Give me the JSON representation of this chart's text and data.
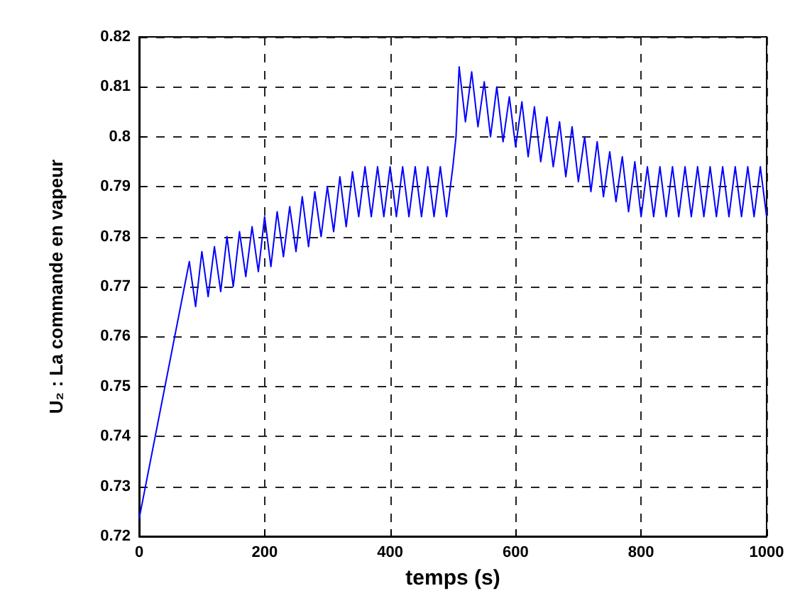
{
  "chart_data": {
    "type": "line",
    "xlabel": "temps (s)",
    "ylabel": "U₂ : La commande en vapeur",
    "xlim": [
      0,
      1000
    ],
    "xticks": [
      0,
      200,
      400,
      600,
      800,
      1000
    ],
    "ylim": [
      0.72,
      0.82
    ],
    "yticks": [
      0.72,
      0.73,
      0.74,
      0.75,
      0.76,
      0.77,
      0.78,
      0.79,
      0.8,
      0.81,
      0.82
    ],
    "grid": true,
    "marker": "none",
    "line_style": "solid",
    "series": [
      {
        "color": "#0000ff",
        "x": [
          0,
          80,
          90,
          100,
          110,
          120,
          130,
          140,
          150,
          160,
          170,
          180,
          190,
          200,
          210,
          220,
          230,
          240,
          250,
          260,
          270,
          280,
          290,
          300,
          310,
          320,
          330,
          340,
          350,
          360,
          370,
          380,
          390,
          400,
          410,
          420,
          430,
          440,
          450,
          460,
          470,
          480,
          490,
          500,
          505,
          510,
          520,
          530,
          540,
          550,
          560,
          570,
          580,
          590,
          600,
          610,
          620,
          630,
          640,
          650,
          660,
          670,
          680,
          690,
          700,
          710,
          720,
          730,
          740,
          750,
          760,
          770,
          780,
          790,
          800,
          810,
          820,
          830,
          840,
          850,
          860,
          870,
          880,
          890,
          900,
          910,
          920,
          930,
          940,
          950,
          960,
          970,
          980,
          990,
          1000
        ],
        "values": [
          0.7235,
          0.775,
          0.766,
          0.777,
          0.768,
          0.778,
          0.769,
          0.78,
          0.77,
          0.781,
          0.772,
          0.782,
          0.773,
          0.784,
          0.774,
          0.785,
          0.776,
          0.786,
          0.777,
          0.788,
          0.778,
          0.789,
          0.78,
          0.79,
          0.781,
          0.792,
          0.782,
          0.793,
          0.784,
          0.794,
          0.784,
          0.794,
          0.784,
          0.794,
          0.784,
          0.794,
          0.784,
          0.794,
          0.784,
          0.794,
          0.784,
          0.794,
          0.784,
          0.794,
          0.8,
          0.814,
          0.803,
          0.813,
          0.802,
          0.811,
          0.8,
          0.81,
          0.799,
          0.808,
          0.798,
          0.807,
          0.796,
          0.806,
          0.795,
          0.804,
          0.794,
          0.803,
          0.792,
          0.802,
          0.791,
          0.8,
          0.789,
          0.799,
          0.788,
          0.797,
          0.787,
          0.796,
          0.785,
          0.795,
          0.784,
          0.794,
          0.784,
          0.794,
          0.784,
          0.794,
          0.784,
          0.794,
          0.784,
          0.794,
          0.784,
          0.794,
          0.784,
          0.794,
          0.784,
          0.794,
          0.784,
          0.794,
          0.784,
          0.794,
          0.784
        ]
      }
    ]
  }
}
